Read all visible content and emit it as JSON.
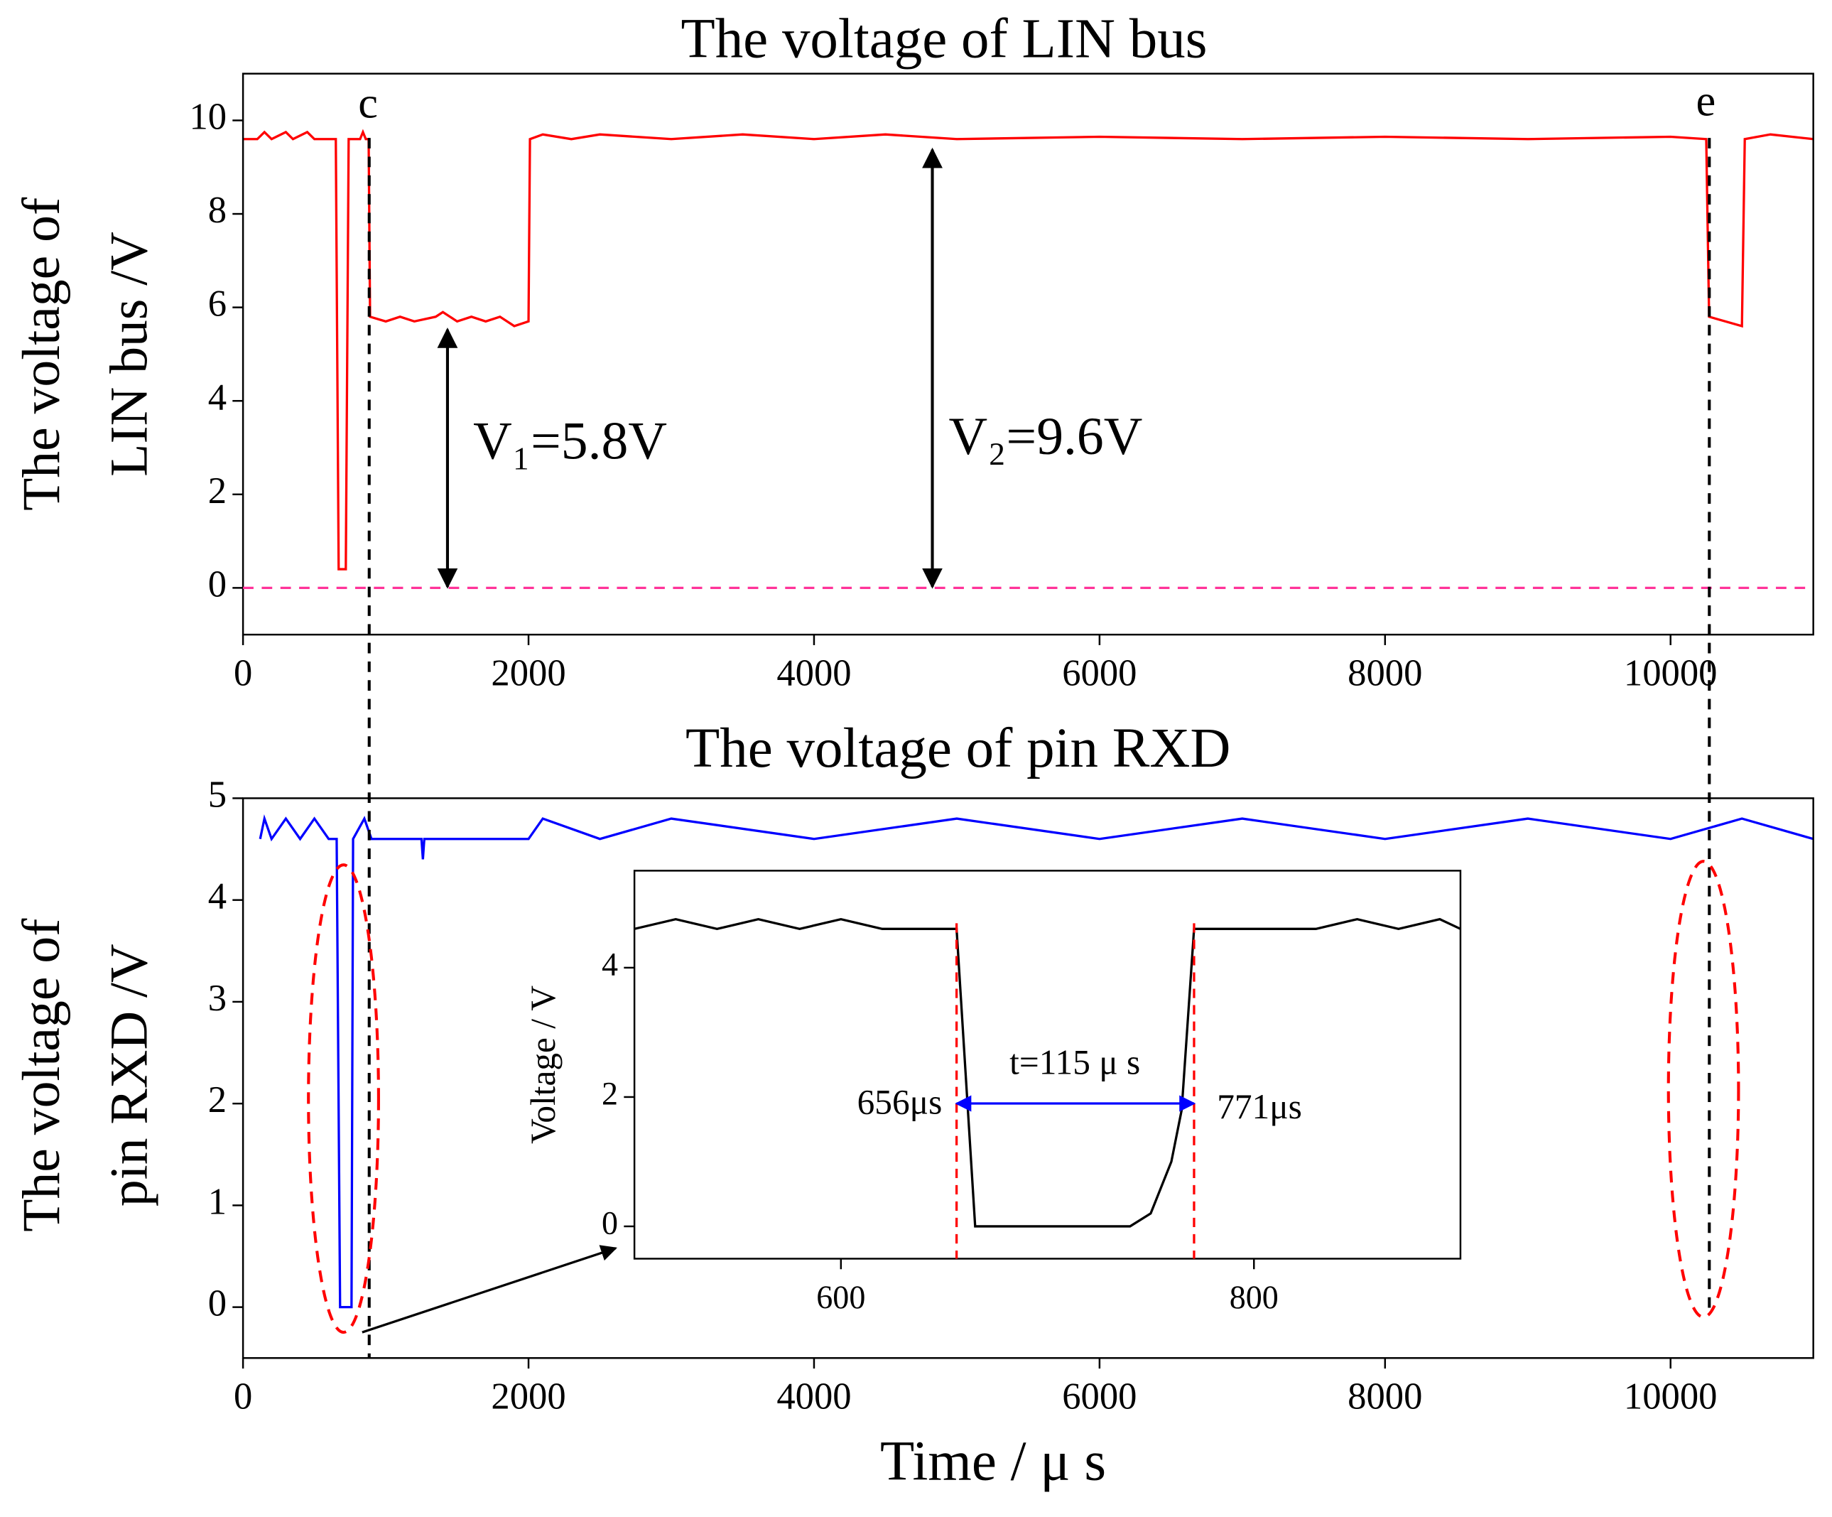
{
  "chart_data": [
    {
      "type": "line",
      "title": "The voltage of LIN bus",
      "ylabel": [
        "The voltage of",
        "LIN bus /V"
      ],
      "x": [
        0,
        100,
        150,
        200,
        300,
        350,
        450,
        500,
        640,
        650,
        670,
        720,
        740,
        820,
        840,
        860,
        880,
        890,
        1000,
        1100,
        1200,
        1350,
        1400,
        1500,
        1600,
        1700,
        1800,
        1900,
        2000,
        2010,
        2100,
        2300,
        2500,
        3000,
        3500,
        4000,
        4500,
        5000,
        6000,
        7000,
        8000,
        9000,
        10000,
        10250,
        10270,
        10500,
        10520,
        10700,
        11000
      ],
      "series": [
        {
          "name": "LIN bus",
          "color": "#ff0000",
          "values": [
            9.6,
            9.6,
            9.75,
            9.6,
            9.75,
            9.6,
            9.75,
            9.6,
            9.6,
            9.6,
            0.4,
            0.4,
            9.6,
            9.6,
            9.75,
            9.6,
            9.6,
            5.8,
            5.7,
            5.8,
            5.7,
            5.8,
            5.9,
            5.7,
            5.8,
            5.7,
            5.8,
            5.6,
            5.7,
            9.6,
            9.7,
            9.6,
            9.7,
            9.6,
            9.7,
            9.6,
            9.7,
            9.6,
            9.65,
            9.6,
            9.65,
            9.6,
            9.65,
            9.6,
            5.8,
            5.6,
            9.6,
            9.7,
            9.6
          ]
        }
      ],
      "xlim": [
        0,
        11000
      ],
      "ylim": [
        -1,
        11
      ],
      "xticks": [
        0,
        2000,
        4000,
        6000,
        8000,
        10000
      ],
      "yticks": [
        0,
        2,
        4,
        6,
        8,
        10
      ],
      "annotations": [
        "c",
        "e",
        "V₁=5.8V",
        "V₂=9.6V"
      ]
    },
    {
      "type": "line",
      "title": "The voltage of pin RXD",
      "ylabel": [
        "The voltage of",
        "pin RXD /V"
      ],
      "xlabel": "Time / μ s",
      "x": [
        120,
        150,
        200,
        300,
        400,
        500,
        600,
        656,
        680,
        760,
        771,
        850,
        900,
        1250,
        1260,
        1270,
        2000,
        2100,
        2500,
        3000,
        4000,
        5000,
        6000,
        7000,
        8000,
        9000,
        10000,
        10500,
        11000
      ],
      "series": [
        {
          "name": "RXD",
          "color": "#0000ff",
          "values": [
            4.6,
            4.8,
            4.6,
            4.8,
            4.6,
            4.8,
            4.6,
            4.6,
            0,
            0,
            4.6,
            4.8,
            4.6,
            4.6,
            4.4,
            4.6,
            4.6,
            4.8,
            4.6,
            4.8,
            4.6,
            4.8,
            4.6,
            4.8,
            4.6,
            4.8,
            4.6,
            4.8,
            4.6
          ]
        }
      ],
      "xlim": [
        0,
        11000
      ],
      "ylim": [
        -0.5,
        5
      ],
      "xticks": [
        0,
        2000,
        4000,
        6000,
        8000,
        10000
      ],
      "yticks": [
        0,
        1,
        2,
        3,
        4,
        5
      ]
    },
    {
      "type": "line",
      "ylabel": [
        "Voltage / V"
      ],
      "x": [
        500,
        520,
        540,
        560,
        580,
        600,
        620,
        640,
        656,
        665,
        740,
        750,
        760,
        765,
        771,
        830,
        850,
        870,
        890,
        900
      ],
      "series": [
        {
          "name": "inset",
          "color": "#000000",
          "values": [
            4.6,
            4.75,
            4.6,
            4.75,
            4.6,
            4.75,
            4.6,
            4.6,
            4.6,
            0,
            0,
            0.2,
            1,
            1.8,
            4.6,
            4.6,
            4.75,
            4.6,
            4.75,
            4.6
          ]
        }
      ],
      "xlim": [
        500,
        900
      ],
      "ylim": [
        -0.5,
        5.5
      ],
      "xticks": [
        600,
        800
      ],
      "yticks": [
        0,
        2,
        4
      ],
      "annotations": [
        "t=115 μ s",
        "656μs",
        "771μs"
      ]
    }
  ]
}
